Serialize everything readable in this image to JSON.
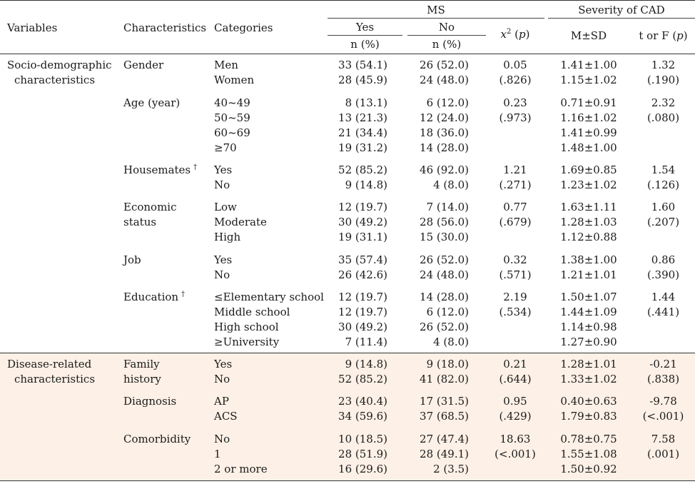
{
  "header": {
    "variables": "Variables",
    "characteristics": "Characteristics",
    "categories": "Categories",
    "ms": "MS",
    "severity": "Severity of CAD",
    "yes": "Yes",
    "no": "No",
    "n_pct": "n (%)",
    "chi_sym": "x",
    "chi_sup": "2",
    "p_sym": "p",
    "msd": "M±SD",
    "tf": "t or F"
  },
  "sections": [
    {
      "label": [
        "Socio-demographic",
        "characteristics"
      ],
      "groups": [
        {
          "characteristic": [
            "Gender"
          ],
          "dagger": false,
          "categories": [
            "Men",
            "Women"
          ],
          "yes": [
            "33 (54.1)",
            "28 (45.9)"
          ],
          "no": [
            "26 (52.0)",
            "24 (48.0)"
          ],
          "chi": [
            "0.05",
            "(.826)"
          ],
          "msd": [
            "1.41±1.00",
            "1.15±1.02"
          ],
          "tf": [
            "1.32",
            "(.190)"
          ]
        },
        {
          "characteristic": [
            "Age (year)"
          ],
          "dagger": false,
          "categories": [
            "40~49",
            "50~59",
            "60~69",
            "≥70"
          ],
          "yes": [
            "8 (13.1)",
            "13 (21.3)",
            "21 (34.4)",
            "19 (31.2)"
          ],
          "no": [
            "6 (12.0)",
            "12 (24.0)",
            "18 (36.0)",
            "14 (28.0)"
          ],
          "chi": [
            "0.23",
            "(.973)"
          ],
          "msd": [
            "0.71±0.91",
            "1.16±1.02",
            "1.41±0.99",
            "1.48±1.00"
          ],
          "tf": [
            "2.32",
            "(.080)"
          ]
        },
        {
          "characteristic": [
            "Housemates"
          ],
          "dagger": true,
          "categories": [
            "Yes",
            "No"
          ],
          "yes": [
            "52 (85.2)",
            "9 (14.8)"
          ],
          "no": [
            "46 (92.0)",
            "4 (8.0)"
          ],
          "chi": [
            "1.21",
            "(.271)"
          ],
          "msd": [
            "1.69±0.85",
            "1.23±1.02"
          ],
          "tf": [
            "1.54",
            "(.126)"
          ]
        },
        {
          "characteristic": [
            "Economic",
            "status"
          ],
          "dagger": false,
          "categories": [
            "Low",
            "Moderate",
            "High"
          ],
          "yes": [
            "12 (19.7)",
            "30 (49.2)",
            "19 (31.1)"
          ],
          "no": [
            "7 (14.0)",
            "28 (56.0)",
            "15 (30.0)"
          ],
          "chi": [
            "0.77",
            "(.679)"
          ],
          "msd": [
            "1.63±1.11",
            "1.28±1.03",
            "1.12±0.88"
          ],
          "tf": [
            "1.60",
            "(.207)"
          ]
        },
        {
          "characteristic": [
            "Job"
          ],
          "dagger": false,
          "categories": [
            "Yes",
            "No"
          ],
          "yes": [
            "35 (57.4)",
            "26 (42.6)"
          ],
          "no": [
            "26 (52.0)",
            "24 (48.0)"
          ],
          "chi": [
            "0.32",
            "(.571)"
          ],
          "msd": [
            "1.38±1.00",
            "1.21±1.01"
          ],
          "tf": [
            "0.86",
            "(.390)"
          ]
        },
        {
          "characteristic": [
            "Education"
          ],
          "dagger": true,
          "categories": [
            "≤Elementary school",
            "Middle school",
            "High school",
            "≥University"
          ],
          "yes": [
            "12 (19.7)",
            "12 (19.7)",
            "30 (49.2)",
            "7 (11.4)"
          ],
          "no": [
            "14 (28.0)",
            "6 (12.0)",
            "26 (52.0)",
            "4 (8.0)"
          ],
          "chi": [
            "2.19",
            "(.534)"
          ],
          "msd": [
            "1.50±1.07",
            "1.44±1.09",
            "1.14±0.98",
            "1.27±0.90"
          ],
          "tf": [
            "1.44",
            "(.441)"
          ]
        }
      ]
    },
    {
      "label": [
        "Disease-related",
        "characteristics"
      ],
      "groups": [
        {
          "characteristic": [
            "Family",
            "history"
          ],
          "dagger": false,
          "categories": [
            "Yes",
            "No"
          ],
          "yes": [
            "9 (14.8)",
            "52 (85.2)"
          ],
          "no": [
            "9 (18.0)",
            "41 (82.0)"
          ],
          "chi": [
            "0.21",
            "(.644)"
          ],
          "msd": [
            "1.28±1.01",
            "1.33±1.02"
          ],
          "tf": [
            "-0.21",
            "(.838)"
          ]
        },
        {
          "characteristic": [
            "Diagnosis"
          ],
          "dagger": false,
          "categories": [
            "AP",
            "ACS"
          ],
          "yes": [
            "23 (40.4)",
            "34 (59.6)"
          ],
          "no": [
            "17 (31.5)",
            "37 (68.5)"
          ],
          "chi": [
            "0.95",
            "(.429)"
          ],
          "msd": [
            "0.40±0.63",
            "1.79±0.83"
          ],
          "tf": [
            "-9.78",
            "(<.001)"
          ]
        },
        {
          "characteristic": [
            "Comorbidity"
          ],
          "dagger": false,
          "categories": [
            "No",
            "1",
            "2 or more"
          ],
          "yes": [
            "10 (18.5)",
            "28 (51.9)",
            "16 (29.6)"
          ],
          "no": [
            "27 (47.4)",
            "28 (49.1)",
            "2 (3.5)"
          ],
          "chi": [
            "18.63",
            "(<.001)"
          ],
          "msd": [
            "0.78±0.75",
            "1.55±1.08",
            "1.50±0.92"
          ],
          "tf": [
            "7.58",
            "(.001)"
          ]
        }
      ]
    }
  ],
  "footnote_mark": "†"
}
